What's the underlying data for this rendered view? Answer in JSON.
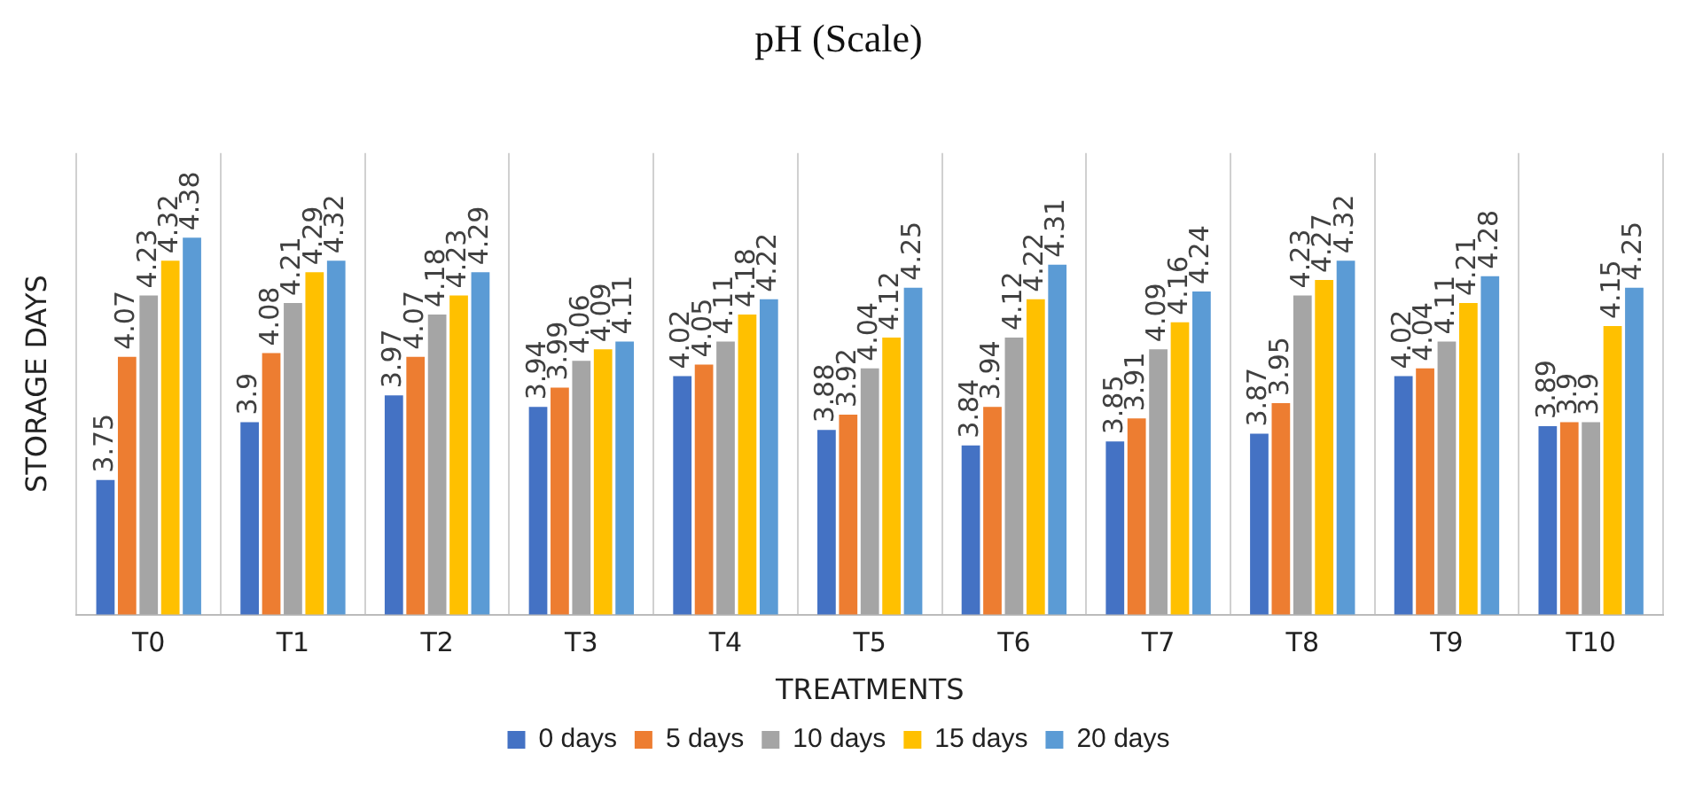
{
  "chart_data": {
    "type": "bar",
    "title": "pH (Scale)",
    "xlabel": "TREATMENTS",
    "ylabel": "STORAGE DAYS",
    "categories": [
      "T0",
      "T1",
      "T2",
      "T3",
      "T4",
      "T5",
      "T6",
      "T7",
      "T8",
      "T9",
      "T10"
    ],
    "series": [
      {
        "name": "0 days",
        "color": "#4472c4",
        "values": [
          3.75,
          3.9,
          3.97,
          3.94,
          4.02,
          3.88,
          3.84,
          3.85,
          3.87,
          4.02,
          3.89
        ]
      },
      {
        "name": "5 days",
        "color": "#ed7d31",
        "values": [
          4.07,
          4.08,
          4.07,
          3.99,
          4.05,
          3.92,
          3.94,
          3.91,
          3.95,
          4.04,
          3.9
        ]
      },
      {
        "name": "10 days",
        "color": "#a5a5a5",
        "values": [
          4.23,
          4.21,
          4.18,
          4.06,
          4.11,
          4.04,
          4.12,
          4.09,
          4.23,
          4.11,
          3.9
        ]
      },
      {
        "name": "15 days",
        "color": "#ffc000",
        "values": [
          4.32,
          4.29,
          4.23,
          4.09,
          4.18,
          4.12,
          4.22,
          4.16,
          4.27,
          4.21,
          4.15
        ]
      },
      {
        "name": "20 days",
        "color": "#5b9bd5",
        "values": [
          4.38,
          4.32,
          4.29,
          4.11,
          4.22,
          4.25,
          4.31,
          4.24,
          4.32,
          4.28,
          4.25
        ]
      }
    ],
    "ylim": [
      3.4,
      4.6
    ],
    "tick_labels": "x",
    "grid": "x",
    "legend": "bottom",
    "data_labels": true
  }
}
